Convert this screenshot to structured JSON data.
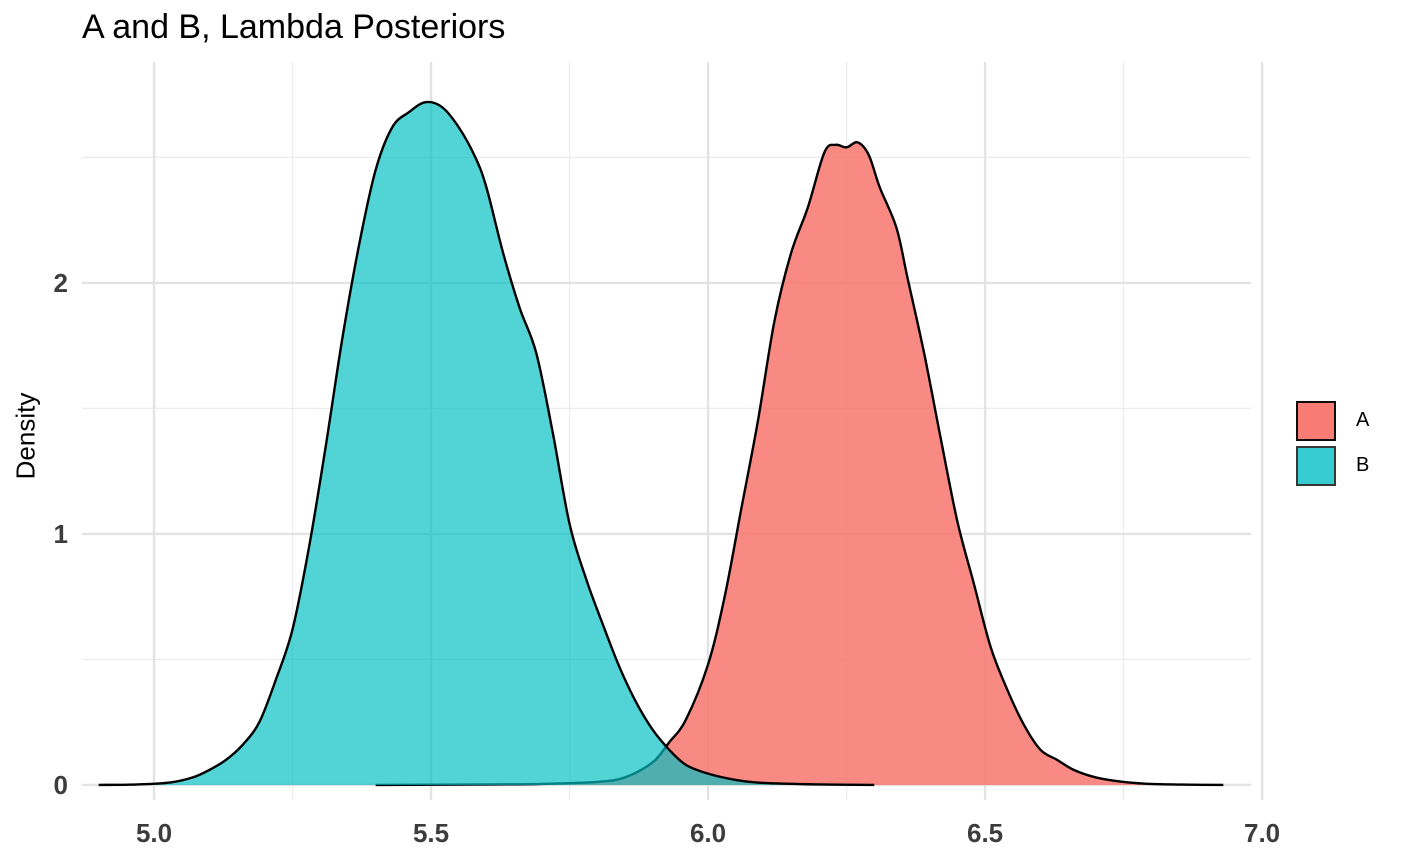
{
  "chart_data": {
    "type": "area",
    "title": "A and B, Lambda Posteriors",
    "xlabel": "",
    "ylabel": "Density",
    "xlim": [
      4.87,
      6.98
    ],
    "ylim": [
      -0.06,
      2.88
    ],
    "x_ticks": [
      5.0,
      5.5,
      6.0,
      6.5,
      7.0
    ],
    "x_tick_labels": [
      "5.0",
      "5.5",
      "6.0",
      "6.5",
      "7.0"
    ],
    "x_minor_ticks": [
      5.25,
      5.75,
      6.25,
      6.75
    ],
    "y_ticks": [
      0,
      1,
      2
    ],
    "y_tick_labels": [
      "0",
      "1",
      "2"
    ],
    "y_minor_ticks": [
      0.5,
      1.5,
      2.5
    ],
    "grid": true,
    "legend_position": "right",
    "series": [
      {
        "name": "A",
        "color": "#F8766D",
        "opacity": 0.85,
        "points": [
          [
            5.4,
            0.0
          ],
          [
            5.6,
            0.002
          ],
          [
            5.7,
            0.004
          ],
          [
            5.8,
            0.012
          ],
          [
            5.85,
            0.03
          ],
          [
            5.9,
            0.09
          ],
          [
            5.93,
            0.17
          ],
          [
            5.96,
            0.26
          ],
          [
            6.0,
            0.48
          ],
          [
            6.03,
            0.75
          ],
          [
            6.06,
            1.1
          ],
          [
            6.09,
            1.45
          ],
          [
            6.12,
            1.85
          ],
          [
            6.15,
            2.12
          ],
          [
            6.18,
            2.3
          ],
          [
            6.21,
            2.52
          ],
          [
            6.23,
            2.55
          ],
          [
            6.25,
            2.54
          ],
          [
            6.27,
            2.56
          ],
          [
            6.29,
            2.51
          ],
          [
            6.31,
            2.38
          ],
          [
            6.34,
            2.22
          ],
          [
            6.36,
            2.02
          ],
          [
            6.39,
            1.72
          ],
          [
            6.42,
            1.38
          ],
          [
            6.45,
            1.05
          ],
          [
            6.48,
            0.8
          ],
          [
            6.51,
            0.55
          ],
          [
            6.54,
            0.38
          ],
          [
            6.57,
            0.24
          ],
          [
            6.6,
            0.14
          ],
          [
            6.63,
            0.1
          ],
          [
            6.66,
            0.06
          ],
          [
            6.7,
            0.03
          ],
          [
            6.75,
            0.012
          ],
          [
            6.8,
            0.004
          ],
          [
            6.87,
            0.001
          ],
          [
            6.93,
            0.0
          ]
        ]
      },
      {
        "name": "B",
        "color": "#00BFC4",
        "opacity": 0.68,
        "points": [
          [
            4.9,
            0.0
          ],
          [
            4.97,
            0.002
          ],
          [
            5.03,
            0.01
          ],
          [
            5.07,
            0.03
          ],
          [
            5.1,
            0.06
          ],
          [
            5.13,
            0.1
          ],
          [
            5.16,
            0.16
          ],
          [
            5.19,
            0.25
          ],
          [
            5.22,
            0.42
          ],
          [
            5.25,
            0.62
          ],
          [
            5.28,
            0.95
          ],
          [
            5.31,
            1.35
          ],
          [
            5.34,
            1.78
          ],
          [
            5.37,
            2.15
          ],
          [
            5.4,
            2.45
          ],
          [
            5.43,
            2.62
          ],
          [
            5.46,
            2.68
          ],
          [
            5.49,
            2.72
          ],
          [
            5.52,
            2.7
          ],
          [
            5.55,
            2.62
          ],
          [
            5.58,
            2.5
          ],
          [
            5.6,
            2.38
          ],
          [
            5.63,
            2.12
          ],
          [
            5.66,
            1.9
          ],
          [
            5.69,
            1.72
          ],
          [
            5.72,
            1.4
          ],
          [
            5.75,
            1.04
          ],
          [
            5.78,
            0.82
          ],
          [
            5.81,
            0.64
          ],
          [
            5.84,
            0.47
          ],
          [
            5.87,
            0.33
          ],
          [
            5.9,
            0.22
          ],
          [
            5.93,
            0.14
          ],
          [
            5.96,
            0.08
          ],
          [
            6.0,
            0.045
          ],
          [
            6.05,
            0.02
          ],
          [
            6.1,
            0.008
          ],
          [
            6.2,
            0.002
          ],
          [
            6.3,
            0.0
          ]
        ]
      }
    ]
  }
}
